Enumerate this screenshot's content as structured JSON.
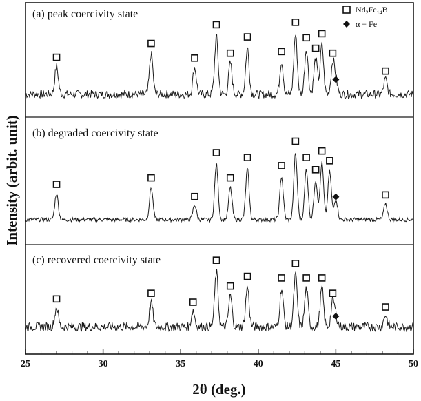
{
  "chart_data": {
    "type": "line",
    "xlabel": "2θ (deg.)",
    "ylabel": "Intensity (arbit. unit)",
    "xlim": [
      25,
      50
    ],
    "x_ticks": [
      "25",
      "30",
      "35",
      "40",
      "45",
      "50"
    ],
    "legend": {
      "placement": "top-right",
      "entries": [
        {
          "marker": "open-square",
          "label": "Nd2Fe14B",
          "label_main": "Nd",
          "sub1": "2",
          "mid": "Fe",
          "sub2": "14",
          "tail": "B"
        },
        {
          "marker": "filled-diamond",
          "label": "α − Fe"
        }
      ]
    },
    "panels": [
      {
        "label": "(a) peak coercivity state",
        "baseline": 0.18,
        "noise": 0.05,
        "peaks": [
          {
            "x": 27.0,
            "y": 0.55,
            "phase": "Nd2Fe14B"
          },
          {
            "x": 33.1,
            "y": 0.72,
            "phase": "Nd2Fe14B"
          },
          {
            "x": 35.9,
            "y": 0.54,
            "phase": "Nd2Fe14B"
          },
          {
            "x": 37.3,
            "y": 0.95,
            "phase": "Nd2Fe14B"
          },
          {
            "x": 38.2,
            "y": 0.6,
            "phase": "Nd2Fe14B"
          },
          {
            "x": 39.3,
            "y": 0.8,
            "phase": "Nd2Fe14B"
          },
          {
            "x": 41.5,
            "y": 0.62,
            "phase": "Nd2Fe14B"
          },
          {
            "x": 42.4,
            "y": 0.98,
            "phase": "Nd2Fe14B"
          },
          {
            "x": 43.1,
            "y": 0.79,
            "phase": "Nd2Fe14B"
          },
          {
            "x": 43.7,
            "y": 0.66,
            "phase": "Nd2Fe14B"
          },
          {
            "x": 44.1,
            "y": 0.84,
            "phase": "Nd2Fe14B"
          },
          {
            "x": 44.8,
            "y": 0.6,
            "phase": "Nd2Fe14B"
          },
          {
            "x": 45.0,
            "y": 0.36,
            "phase": "α-Fe"
          },
          {
            "x": 48.2,
            "y": 0.38,
            "phase": "Nd2Fe14B"
          }
        ]
      },
      {
        "label": "(b) degraded coercivity state",
        "baseline": 0.12,
        "noise": 0.025,
        "peaks": [
          {
            "x": 27.0,
            "y": 0.47,
            "phase": "Nd2Fe14B"
          },
          {
            "x": 33.1,
            "y": 0.55,
            "phase": "Nd2Fe14B"
          },
          {
            "x": 35.9,
            "y": 0.32,
            "phase": "Nd2Fe14B"
          },
          {
            "x": 37.3,
            "y": 0.86,
            "phase": "Nd2Fe14B"
          },
          {
            "x": 38.2,
            "y": 0.55,
            "phase": "Nd2Fe14B"
          },
          {
            "x": 39.3,
            "y": 0.8,
            "phase": "Nd2Fe14B"
          },
          {
            "x": 41.5,
            "y": 0.7,
            "phase": "Nd2Fe14B"
          },
          {
            "x": 42.4,
            "y": 1.0,
            "phase": "Nd2Fe14B"
          },
          {
            "x": 43.1,
            "y": 0.8,
            "phase": "Nd2Fe14B"
          },
          {
            "x": 43.7,
            "y": 0.65,
            "phase": "Nd2Fe14B"
          },
          {
            "x": 44.1,
            "y": 0.88,
            "phase": "Nd2Fe14B"
          },
          {
            "x": 44.6,
            "y": 0.76,
            "phase": "Nd2Fe14B"
          },
          {
            "x": 45.0,
            "y": 0.4,
            "phase": "α-Fe"
          },
          {
            "x": 48.2,
            "y": 0.34,
            "phase": "Nd2Fe14B"
          }
        ]
      },
      {
        "label": "(c) recovered coercivity state",
        "baseline": 0.22,
        "noise": 0.055,
        "peaks": [
          {
            "x": 27.0,
            "y": 0.48,
            "phase": "Nd2Fe14B"
          },
          {
            "x": 33.1,
            "y": 0.55,
            "phase": "Nd2Fe14B"
          },
          {
            "x": 35.8,
            "y": 0.44,
            "phase": "Nd2Fe14B"
          },
          {
            "x": 37.3,
            "y": 0.96,
            "phase": "Nd2Fe14B"
          },
          {
            "x": 38.2,
            "y": 0.64,
            "phase": "Nd2Fe14B"
          },
          {
            "x": 39.3,
            "y": 0.76,
            "phase": "Nd2Fe14B"
          },
          {
            "x": 41.5,
            "y": 0.74,
            "phase": "Nd2Fe14B"
          },
          {
            "x": 42.4,
            "y": 0.92,
            "phase": "Nd2Fe14B"
          },
          {
            "x": 43.1,
            "y": 0.74,
            "phase": "Nd2Fe14B"
          },
          {
            "x": 44.1,
            "y": 0.74,
            "phase": "Nd2Fe14B"
          },
          {
            "x": 44.8,
            "y": 0.55,
            "phase": "Nd2Fe14B"
          },
          {
            "x": 45.0,
            "y": 0.35,
            "phase": "α-Fe"
          },
          {
            "x": 48.2,
            "y": 0.38,
            "phase": "Nd2Fe14B"
          }
        ]
      }
    ]
  },
  "colors": {
    "line": "#1a1a1a",
    "frame": "#1a1a1a",
    "background": "#ffffff"
  }
}
